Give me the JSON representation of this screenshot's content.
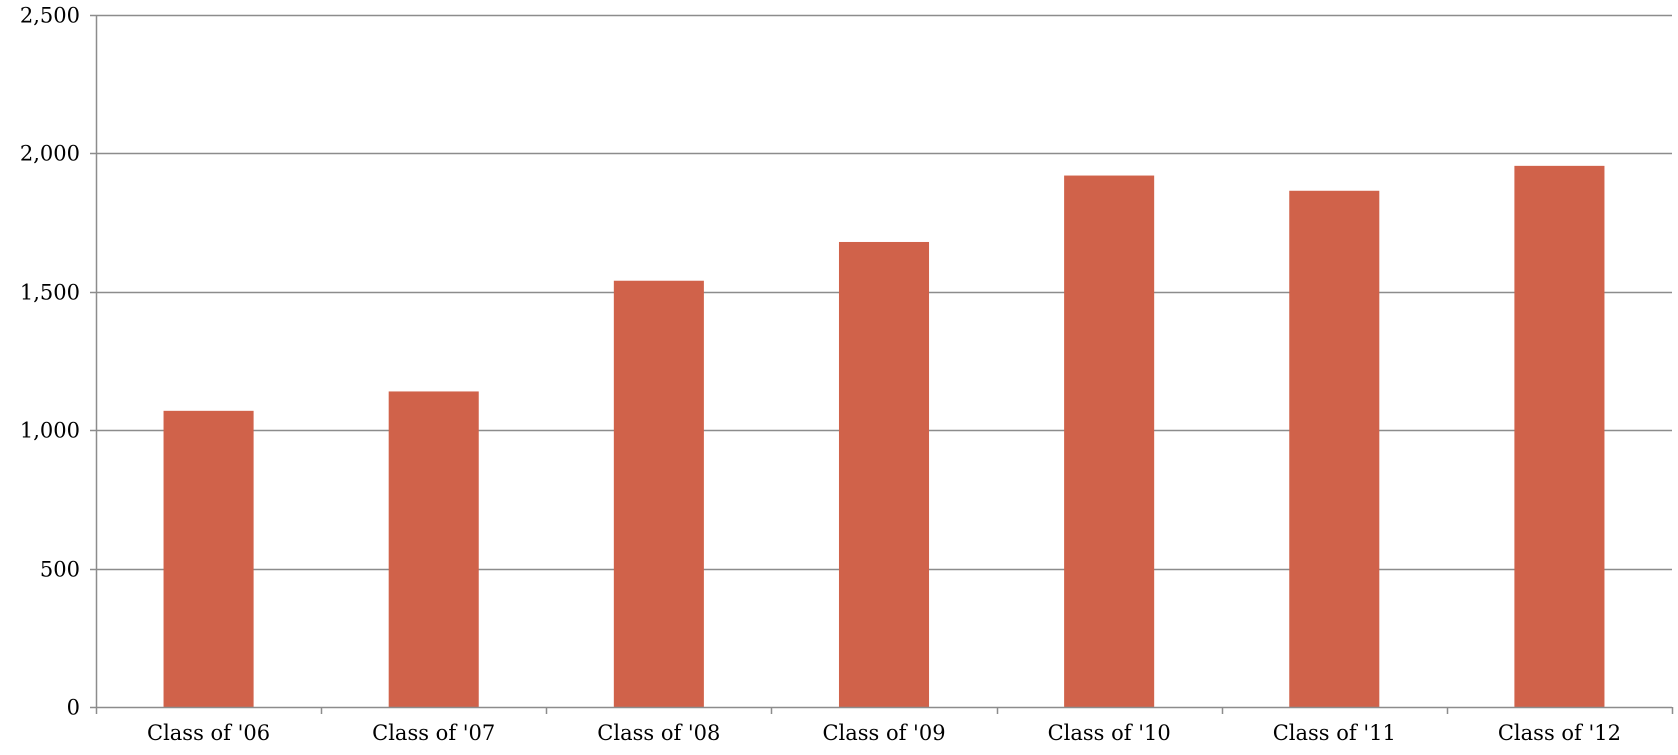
{
  "chart_data": {
    "type": "bar",
    "title": "",
    "xlabel": "",
    "ylabel": "",
    "categories": [
      "Class of '06",
      "Class of '07",
      "Class of '08",
      "Class of '09",
      "Class of '10",
      "Class of '11",
      "Class of '12"
    ],
    "series": [
      {
        "values": [
          1070,
          1140,
          1540,
          1680,
          1920,
          1865,
          1955
        ],
        "color": "#D0624A"
      }
    ],
    "ylim": [
      0,
      2500
    ],
    "yticks": [
      0,
      500,
      1000,
      1500,
      2000,
      2500
    ],
    "ytick_labels": [
      "0",
      "500",
      "1,000",
      "1,500",
      "2,000",
      "2,500"
    ],
    "grid": true,
    "legend": "none",
    "colors": {
      "bar": "#D0624A",
      "grid": "#8C8C8C",
      "axis": "#8C8C8C"
    }
  }
}
